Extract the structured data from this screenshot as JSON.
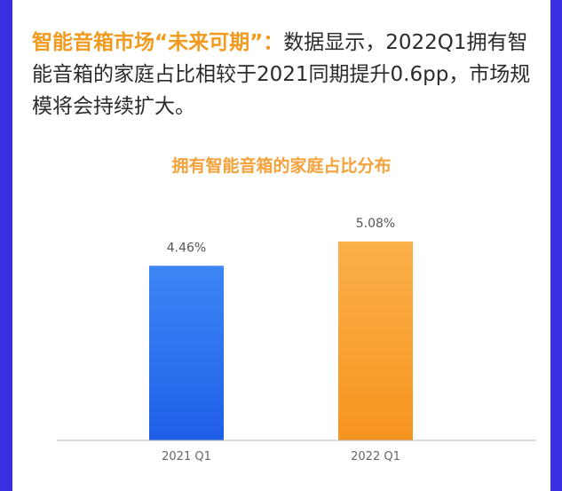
{
  "headline": {
    "highlight": "智能音箱市场“未来可期”：",
    "body": "数据显示，2022Q1拥有智能音箱的家庭占比相较于2021同期提升0.6pp，市场规模将会持续扩大。"
  },
  "colors": {
    "background": "#3a2fe0",
    "highlight": "#f29a1e",
    "bar_2021": "#2b6ff0",
    "bar_2022": "#f9a033"
  },
  "chart_data": {
    "type": "bar",
    "title": "拥有智能音箱的家庭占比分布",
    "categories": [
      "2021 Q1",
      "2022 Q1"
    ],
    "values": [
      4.46,
      5.08
    ],
    "value_labels": [
      "4.46%",
      "5.08%"
    ],
    "xlabel": "",
    "ylabel": "",
    "grid": false,
    "legend": "none"
  }
}
